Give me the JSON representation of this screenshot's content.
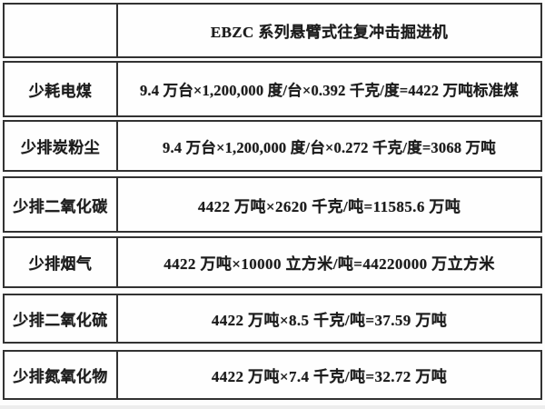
{
  "table": {
    "header": {
      "title": "EBZC 系列悬臂式往复冲击掘进机"
    },
    "rows": [
      {
        "label": "少耗电煤",
        "value": "9.4 万台×1,200,000 度/台×0.392 千克/度=4422 万吨标准煤"
      },
      {
        "label": "少排炭粉尘",
        "value": "9.4 万台×1,200,000 度/台×0.272 千克/度=3068 万吨"
      },
      {
        "label": "少排二氧化碳",
        "value": "4422 万吨×2620 千克/吨=11585.6 万吨"
      },
      {
        "label": "少排烟气",
        "value": "4422 万吨×10000 立方米/吨=44220000 万立方米"
      },
      {
        "label": "少排二氧化硫",
        "value": "4422 万吨×8.5 千克/吨=37.59 万吨"
      },
      {
        "label": "少排氮氧化物",
        "value": "4422 万吨×7.4 千克/吨=32.72 万吨"
      }
    ],
    "colors": {
      "border": "#323232",
      "text": "#1c1c1c",
      "background": "#fdfdfd"
    }
  }
}
